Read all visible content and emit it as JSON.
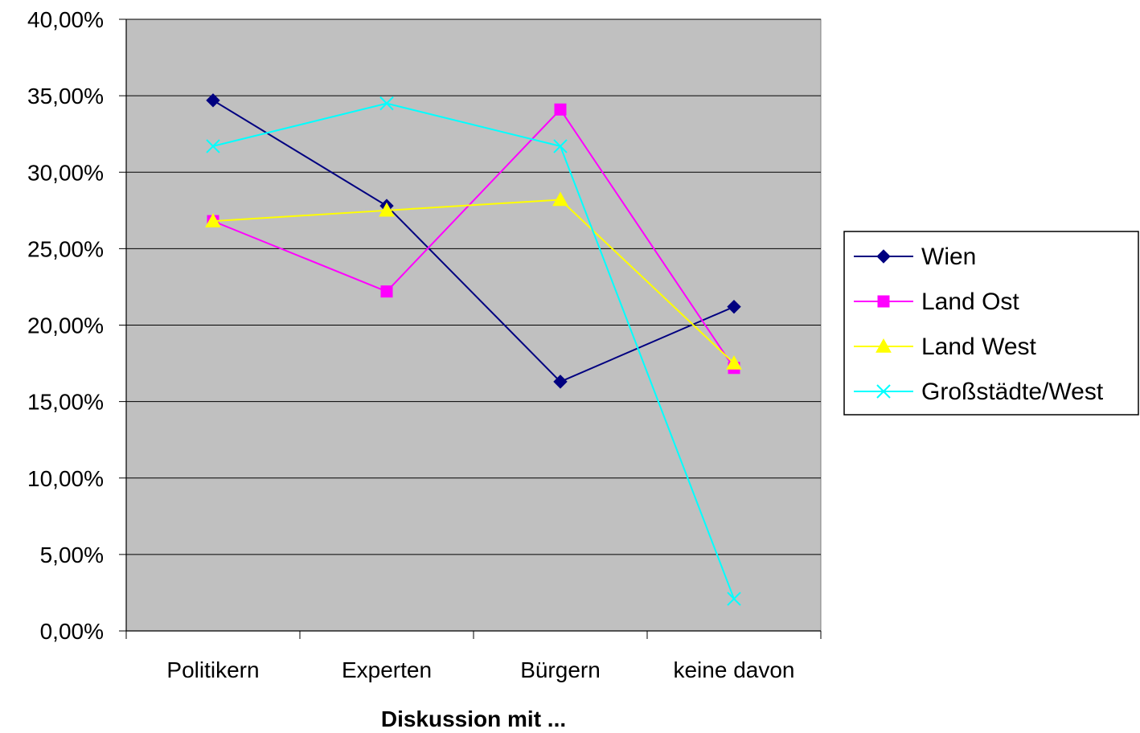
{
  "chart_data": {
    "type": "line",
    "title": "",
    "xlabel": "Diskussion mit ...",
    "ylabel": "",
    "categories": [
      "Politikern",
      "Experten",
      "Bürgern",
      "keine davon"
    ],
    "ylim": [
      0,
      0.4
    ],
    "yticks": [
      0,
      0.05,
      0.1,
      0.15,
      0.2,
      0.25,
      0.3,
      0.35,
      0.4
    ],
    "ytick_labels": [
      "0,00%",
      "5,00%",
      "10,00%",
      "15,00%",
      "20,00%",
      "25,00%",
      "30,00%",
      "35,00%",
      "40,00%"
    ],
    "grid": true,
    "plot_background": "#c0c0c0",
    "legend_position": "right",
    "series": [
      {
        "name": "Wien",
        "color": "#000080",
        "marker": "diamond",
        "values": [
          0.347,
          0.278,
          0.163,
          0.212
        ]
      },
      {
        "name": "Land Ost",
        "color": "#ff00ff",
        "marker": "square",
        "values": [
          0.268,
          0.222,
          0.341,
          0.172
        ]
      },
      {
        "name": "Land West",
        "color": "#ffff00",
        "marker": "triangle",
        "values": [
          0.268,
          0.275,
          0.282,
          0.175
        ]
      },
      {
        "name": "Großstädte/West",
        "color": "#00ffff",
        "marker": "x",
        "values": [
          0.317,
          0.345,
          0.317,
          0.021
        ]
      }
    ]
  }
}
